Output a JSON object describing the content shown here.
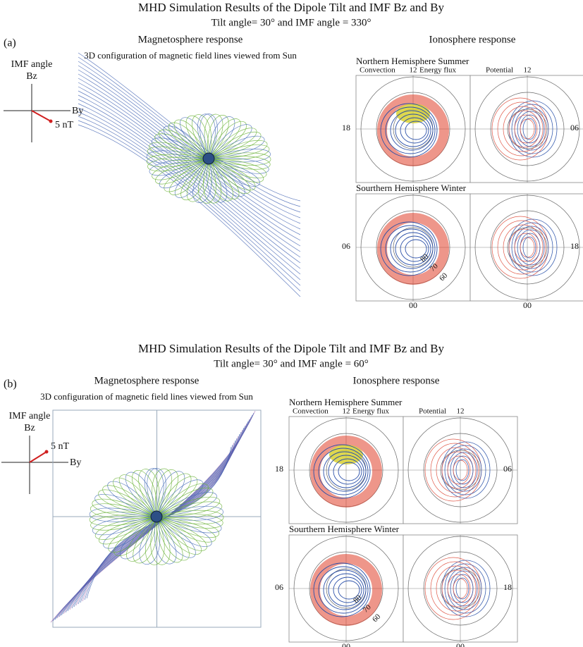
{
  "panels": [
    {
      "label": "(a)",
      "title": "MHD Simulation Results of the Dipole Tilt and IMF Bz and By",
      "subtitle": "Tilt angle= 30° and IMF angle = 330°",
      "magnetosphere": {
        "heading": "Magnetosphere response",
        "caption": "3D configuration of magnetic field lines viewed from Sun"
      },
      "imf": {
        "title": "IMF angle",
        "bz": "Bz",
        "by": "By",
        "magnitude": "5 nT"
      },
      "ionosphere": {
        "heading": "Ionosphere response",
        "north": "Northern Hemisphere Summer",
        "south": "Sourthern Hemisphere Winter",
        "convection": "Convection",
        "energy_flux": "Energy flux",
        "potential": "Potential",
        "noon": "12",
        "dusk": "18",
        "dawn": "06",
        "midnight": "00",
        "lat_labels": [
          "80",
          "70",
          "60"
        ]
      }
    },
    {
      "label": "(b)",
      "title": "MHD Simulation Results of the Dipole Tilt and IMF Bz and By",
      "subtitle": "Tilt angle= 30° and IMF angle = 60°",
      "magnetosphere": {
        "heading": "Magnetosphere response",
        "caption": "3D configuration of magnetic field lines viewed from Sun"
      },
      "imf": {
        "title": "IMF angle",
        "bz": "Bz",
        "by": "By",
        "magnitude": "5 nT"
      },
      "ionosphere": {
        "heading": "Ionosphere response",
        "north": "Northern Hemisphere Summer",
        "south": "Sourthern Hemisphere Winter",
        "convection": "Convection",
        "energy_flux": "Energy flux",
        "potential": "Potential",
        "noon": "12",
        "dusk": "18",
        "dawn": "06",
        "midnight": "00",
        "lat_labels": [
          "80",
          "70",
          "60"
        ]
      }
    }
  ]
}
